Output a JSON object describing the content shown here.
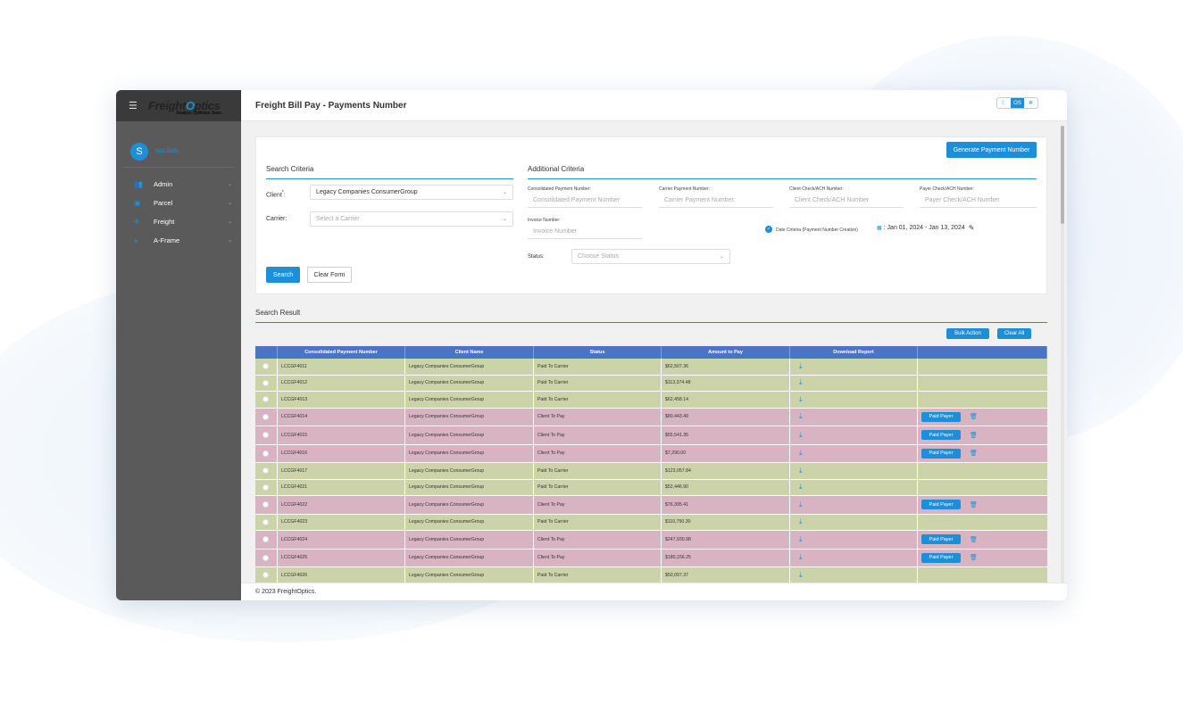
{
  "app": {
    "title": "Freight Bill Pay - Payments Number",
    "copyright": "© 2023 FreightOptics."
  },
  "logo": {
    "pre": "Freight",
    "o": "O",
    "post": "ptics",
    "tagline": "Analyze. Optimize. Save."
  },
  "theme": {
    "options": [
      "☾",
      "OS",
      "✲"
    ]
  },
  "user": {
    "initial": "S",
    "name": "sos.bids"
  },
  "sidebar": {
    "items": [
      {
        "label": "Admin",
        "icon": "users-icon"
      },
      {
        "label": "Parcel",
        "icon": "box-icon"
      },
      {
        "label": "Freight",
        "icon": "plane-icon"
      },
      {
        "label": "A-Frame",
        "icon": "network-icon"
      }
    ]
  },
  "form": {
    "generate_button": "Generate Payment Number",
    "search_criteria_title": "Search Criteria",
    "additional_criteria_title": "Additional Criteria",
    "client_label": "Client",
    "client_required": "*",
    "client_value": "Legacy Companies ConsumerGroup",
    "carrier_label": "Carrier:",
    "carrier_placeholder": "Select a Carrier",
    "consolidated_label": "Consolidated Payment Number:",
    "consolidated_placeholder": "Consolidated Payment Number",
    "carrier_payment_label": "Carrier Payment Number: :",
    "carrier_payment_placeholder": "Carrier Payment Number:",
    "client_check_label": "Client Check/ACH Number:",
    "client_check_placeholder": "Client Check/ACH Number",
    "payer_check_label": "Payer Check/ACH Number:",
    "payer_check_placeholder": "Payer Check/ACH Number",
    "invoice_label": "Invoice Number:",
    "invoice_placeholder": "Invoice Number",
    "date_criteria_label": "Date Criteria (Payment Number Creation)",
    "date_range": ": Jan 01, 2024 - Jan 13, 2024",
    "status_label": "Status:",
    "status_placeholder": "Choose Status",
    "search_button": "Search",
    "clear_button": "Clear Form"
  },
  "results": {
    "title": "Search Result",
    "bulk_action": "Bulk Action",
    "clear_all": "Clear All",
    "columns": [
      "",
      "Consolidated Payment Number",
      "Client Name",
      "Status",
      "Amount to Pay",
      "Download Report",
      ""
    ],
    "paid_payer_label": "Paid Payer",
    "rows": [
      {
        "id": "LCCGF4011",
        "client": "Legacy Companies ConsumerGroup",
        "status": "Paid To Carrier",
        "amount": "$62,507.36",
        "type": "paid"
      },
      {
        "id": "LCCGF4012",
        "client": "Legacy Companies ConsumerGroup",
        "status": "Paid To Carrier",
        "amount": "$113,374.48",
        "type": "paid"
      },
      {
        "id": "LCCGF4013",
        "client": "Legacy Companies ConsumerGroup",
        "status": "Paid To Carrier",
        "amount": "$62,458.14",
        "type": "paid"
      },
      {
        "id": "LCCGF4014",
        "client": "Legacy Companies ConsumerGroup",
        "status": "Client To Pay",
        "amount": "$80,443.49",
        "type": "client"
      },
      {
        "id": "LCCGF4015",
        "client": "Legacy Companies ConsumerGroup",
        "status": "Client To Pay",
        "amount": "$55,541.35",
        "type": "client"
      },
      {
        "id": "LCCGF4016",
        "client": "Legacy Companies ConsumerGroup",
        "status": "Client To Pay",
        "amount": "$7,290.00",
        "type": "client"
      },
      {
        "id": "LCCGF4017",
        "client": "Legacy Companies ConsumerGroup",
        "status": "Paid To Carrier",
        "amount": "$123,057.84",
        "type": "paid"
      },
      {
        "id": "LCCGF4021",
        "client": "Legacy Companies ConsumerGroup",
        "status": "Paid To Carrier",
        "amount": "$52,446.90",
        "type": "paid"
      },
      {
        "id": "LCCGF4022",
        "client": "Legacy Companies ConsumerGroup",
        "status": "Client To Pay",
        "amount": "$76,395.41",
        "type": "client"
      },
      {
        "id": "LCCGF4023",
        "client": "Legacy Companies ConsumerGroup",
        "status": "Paid To Carrier",
        "amount": "$110,750.30",
        "type": "paid"
      },
      {
        "id": "LCCGF4024",
        "client": "Legacy Companies ConsumerGroup",
        "status": "Client To Pay",
        "amount": "$247,930.98",
        "type": "client"
      },
      {
        "id": "LCCGF4025",
        "client": "Legacy Companies ConsumerGroup",
        "status": "Client To Pay",
        "amount": "$180,156.25",
        "type": "client"
      },
      {
        "id": "LCCGF4026",
        "client": "Legacy Companies ConsumerGroup",
        "status": "Paid To Carrier",
        "amount": "$50,097.37",
        "type": "paid"
      }
    ]
  },
  "colors": {
    "accent": "#1c8fd8",
    "paid_row": "#ccd3a9",
    "client_row": "#d8b3c2",
    "header": "#4a74c4"
  }
}
